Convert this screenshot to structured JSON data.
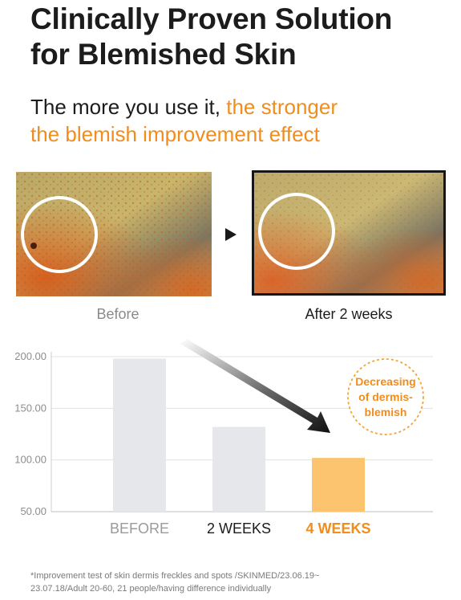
{
  "header": {
    "title_line1": "Clinically Proven Solution",
    "title_line2": "for Blemished Skin",
    "subtitle_part1": "The more you use it, ",
    "subtitle_accent1": "the stronger",
    "subtitle_accent2": "the blemish improvement effect"
  },
  "comparison": {
    "before_caption": "Before",
    "after_caption": "After 2 weeks"
  },
  "chart_data": {
    "type": "bar",
    "categories": [
      "BEFORE",
      "2 WEEKS",
      "4 WEEKS"
    ],
    "values": [
      198,
      132,
      102
    ],
    "yticks": [
      "200.00",
      "150.00",
      "100.00",
      "50.00"
    ],
    "ylim": [
      50,
      200
    ],
    "bar_colors": [
      "#e5e7ea",
      "#e5e7ea",
      "#fdc46f"
    ],
    "label_colors": [
      "#9a9a9a",
      "#1c1c1c",
      "#f28c1a"
    ],
    "annotation": [
      "Decreasing",
      "of dermis-",
      "blemish"
    ],
    "grid": "horizontal"
  },
  "footnote": {
    "line1": "*Improvement test of skin dermis freckles and spots /SKINMED/23.06.19~",
    "line2": "23.07.18/Adult 20-60, 21 people/having difference individually"
  },
  "colors": {
    "accent": "#f28c1a",
    "text": "#1c1c1c"
  }
}
